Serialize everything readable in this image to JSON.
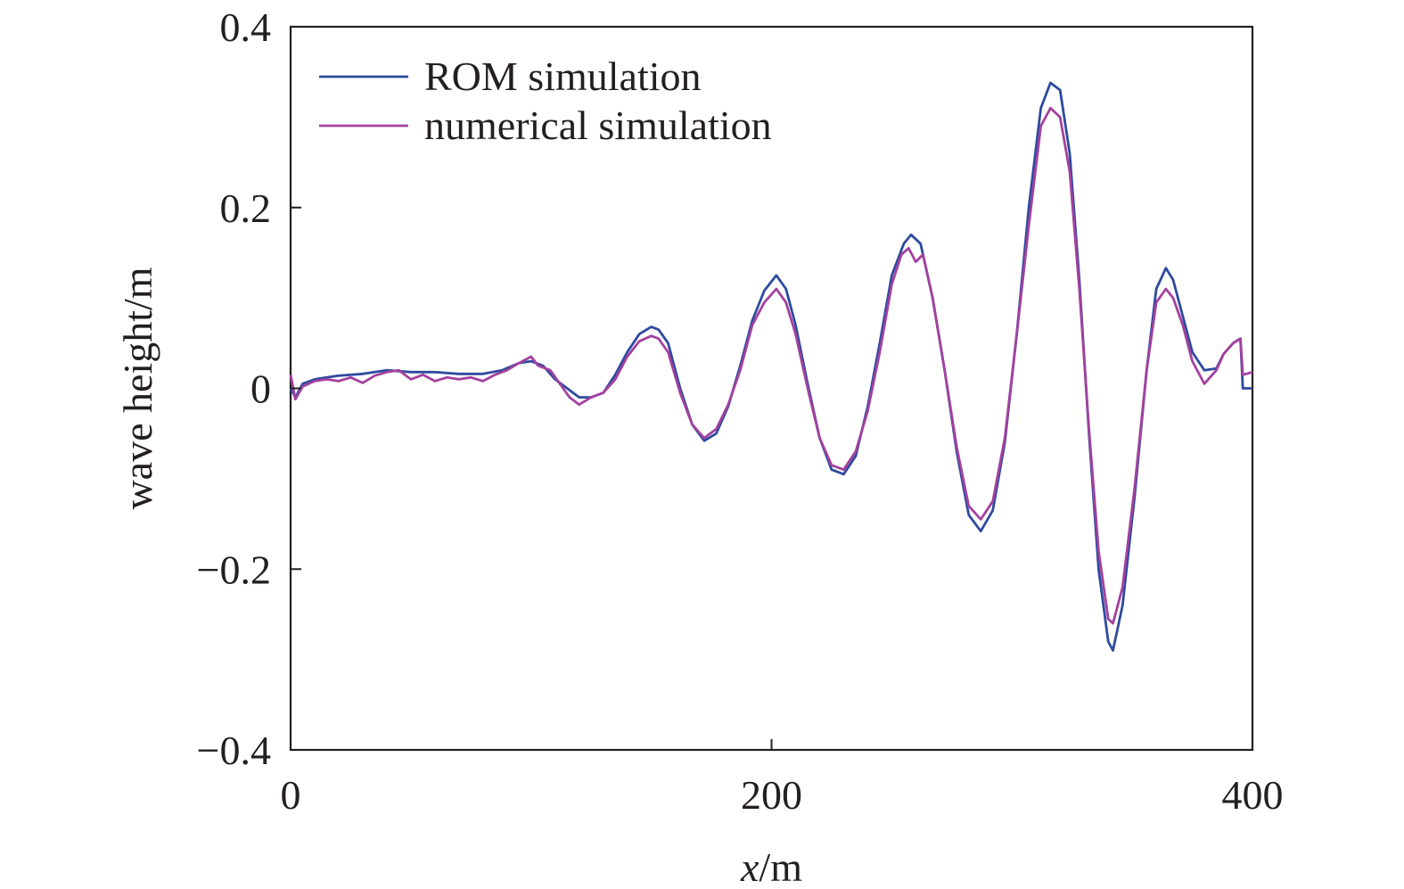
{
  "chart_data": {
    "type": "line",
    "title": "",
    "xlabel_italic": "x",
    "xlabel_unit": "/m",
    "ylabel": "wave height/m",
    "xlim": [
      0,
      400
    ],
    "ylim": [
      -0.4,
      0.4
    ],
    "xticks": [
      0,
      200,
      400
    ],
    "xtick_labels": [
      "0",
      "200",
      "400"
    ],
    "yticks": [
      -0.4,
      -0.2,
      0,
      0.2,
      0.4
    ],
    "ytick_labels": [
      "−0.4",
      "−0.2",
      "0",
      "0.2",
      "0.4"
    ],
    "grid": false,
    "legend_position": "top-left",
    "series": [
      {
        "name": "ROM simulation",
        "color": "#2e4a9e",
        "points": [
          [
            0,
            0.0
          ],
          [
            2,
            -0.01
          ],
          [
            5,
            0.005
          ],
          [
            10,
            0.01
          ],
          [
            15,
            0.012
          ],
          [
            20,
            0.014
          ],
          [
            30,
            0.016
          ],
          [
            40,
            0.02
          ],
          [
            50,
            0.018
          ],
          [
            60,
            0.018
          ],
          [
            70,
            0.016
          ],
          [
            80,
            0.016
          ],
          [
            88,
            0.02
          ],
          [
            95,
            0.028
          ],
          [
            100,
            0.03
          ],
          [
            105,
            0.025
          ],
          [
            110,
            0.01
          ],
          [
            115,
            0.0
          ],
          [
            120,
            -0.01
          ],
          [
            125,
            -0.01
          ],
          [
            130,
            -0.005
          ],
          [
            135,
            0.015
          ],
          [
            140,
            0.04
          ],
          [
            145,
            0.06
          ],
          [
            150,
            0.068
          ],
          [
            153,
            0.065
          ],
          [
            157,
            0.05
          ],
          [
            162,
            0.0
          ],
          [
            167,
            -0.04
          ],
          [
            172,
            -0.058
          ],
          [
            177,
            -0.05
          ],
          [
            182,
            -0.02
          ],
          [
            187,
            0.025
          ],
          [
            192,
            0.075
          ],
          [
            197,
            0.108
          ],
          [
            202,
            0.125
          ],
          [
            206,
            0.11
          ],
          [
            210,
            0.07
          ],
          [
            215,
            0.005
          ],
          [
            220,
            -0.055
          ],
          [
            225,
            -0.09
          ],
          [
            230,
            -0.095
          ],
          [
            235,
            -0.075
          ],
          [
            240,
            -0.02
          ],
          [
            245,
            0.05
          ],
          [
            250,
            0.125
          ],
          [
            255,
            0.16
          ],
          [
            258,
            0.17
          ],
          [
            262,
            0.16
          ],
          [
            267,
            0.1
          ],
          [
            272,
            0.02
          ],
          [
            277,
            -0.07
          ],
          [
            282,
            -0.14
          ],
          [
            287,
            -0.158
          ],
          [
            292,
            -0.135
          ],
          [
            297,
            -0.06
          ],
          [
            302,
            0.06
          ],
          [
            307,
            0.2
          ],
          [
            312,
            0.31
          ],
          [
            316,
            0.338
          ],
          [
            320,
            0.33
          ],
          [
            324,
            0.26
          ],
          [
            328,
            0.12
          ],
          [
            332,
            -0.05
          ],
          [
            336,
            -0.2
          ],
          [
            340,
            -0.28
          ],
          [
            342,
            -0.29
          ],
          [
            346,
            -0.24
          ],
          [
            351,
            -0.12
          ],
          [
            356,
            0.02
          ],
          [
            360,
            0.11
          ],
          [
            364,
            0.133
          ],
          [
            367,
            0.12
          ],
          [
            371,
            0.08
          ],
          [
            375,
            0.04
          ],
          [
            380,
            0.02
          ],
          [
            385,
            0.022
          ],
          [
            388,
            0.038
          ],
          [
            392,
            0.05
          ],
          [
            395,
            0.055
          ],
          [
            396,
            0.0
          ],
          [
            400,
            0.0
          ]
        ]
      },
      {
        "name": "numerical simulation",
        "color": "#a3419e",
        "points": [
          [
            0,
            0.015
          ],
          [
            2,
            -0.012
          ],
          [
            5,
            0.002
          ],
          [
            10,
            0.008
          ],
          [
            15,
            0.01
          ],
          [
            20,
            0.008
          ],
          [
            25,
            0.012
          ],
          [
            30,
            0.006
          ],
          [
            35,
            0.014
          ],
          [
            40,
            0.018
          ],
          [
            45,
            0.02
          ],
          [
            50,
            0.01
          ],
          [
            55,
            0.015
          ],
          [
            60,
            0.008
          ],
          [
            65,
            0.012
          ],
          [
            70,
            0.01
          ],
          [
            75,
            0.012
          ],
          [
            80,
            0.008
          ],
          [
            85,
            0.015
          ],
          [
            90,
            0.02
          ],
          [
            95,
            0.028
          ],
          [
            100,
            0.035
          ],
          [
            103,
            0.025
          ],
          [
            108,
            0.02
          ],
          [
            112,
            0.005
          ],
          [
            116,
            -0.01
          ],
          [
            120,
            -0.018
          ],
          [
            125,
            -0.01
          ],
          [
            130,
            -0.005
          ],
          [
            135,
            0.01
          ],
          [
            140,
            0.035
          ],
          [
            145,
            0.052
          ],
          [
            150,
            0.058
          ],
          [
            153,
            0.055
          ],
          [
            157,
            0.04
          ],
          [
            162,
            -0.005
          ],
          [
            167,
            -0.04
          ],
          [
            172,
            -0.055
          ],
          [
            177,
            -0.045
          ],
          [
            182,
            -0.018
          ],
          [
            187,
            0.02
          ],
          [
            192,
            0.07
          ],
          [
            197,
            0.095
          ],
          [
            202,
            0.11
          ],
          [
            206,
            0.095
          ],
          [
            210,
            0.06
          ],
          [
            215,
            0.0
          ],
          [
            220,
            -0.055
          ],
          [
            225,
            -0.085
          ],
          [
            230,
            -0.09
          ],
          [
            235,
            -0.07
          ],
          [
            240,
            -0.025
          ],
          [
            245,
            0.04
          ],
          [
            250,
            0.115
          ],
          [
            254,
            0.148
          ],
          [
            257,
            0.155
          ],
          [
            260,
            0.14
          ],
          [
            263,
            0.148
          ],
          [
            267,
            0.1
          ],
          [
            272,
            0.02
          ],
          [
            277,
            -0.065
          ],
          [
            282,
            -0.13
          ],
          [
            287,
            -0.145
          ],
          [
            292,
            -0.125
          ],
          [
            297,
            -0.055
          ],
          [
            302,
            0.06
          ],
          [
            307,
            0.18
          ],
          [
            312,
            0.29
          ],
          [
            316,
            0.31
          ],
          [
            320,
            0.3
          ],
          [
            324,
            0.24
          ],
          [
            328,
            0.11
          ],
          [
            332,
            -0.045
          ],
          [
            336,
            -0.18
          ],
          [
            340,
            -0.255
          ],
          [
            342,
            -0.26
          ],
          [
            346,
            -0.22
          ],
          [
            351,
            -0.11
          ],
          [
            356,
            0.02
          ],
          [
            360,
            0.095
          ],
          [
            364,
            0.11
          ],
          [
            367,
            0.1
          ],
          [
            371,
            0.07
          ],
          [
            375,
            0.03
          ],
          [
            380,
            0.005
          ],
          [
            385,
            0.02
          ],
          [
            388,
            0.038
          ],
          [
            392,
            0.05
          ],
          [
            395,
            0.055
          ],
          [
            396,
            0.015
          ],
          [
            400,
            0.018
          ]
        ]
      }
    ]
  }
}
